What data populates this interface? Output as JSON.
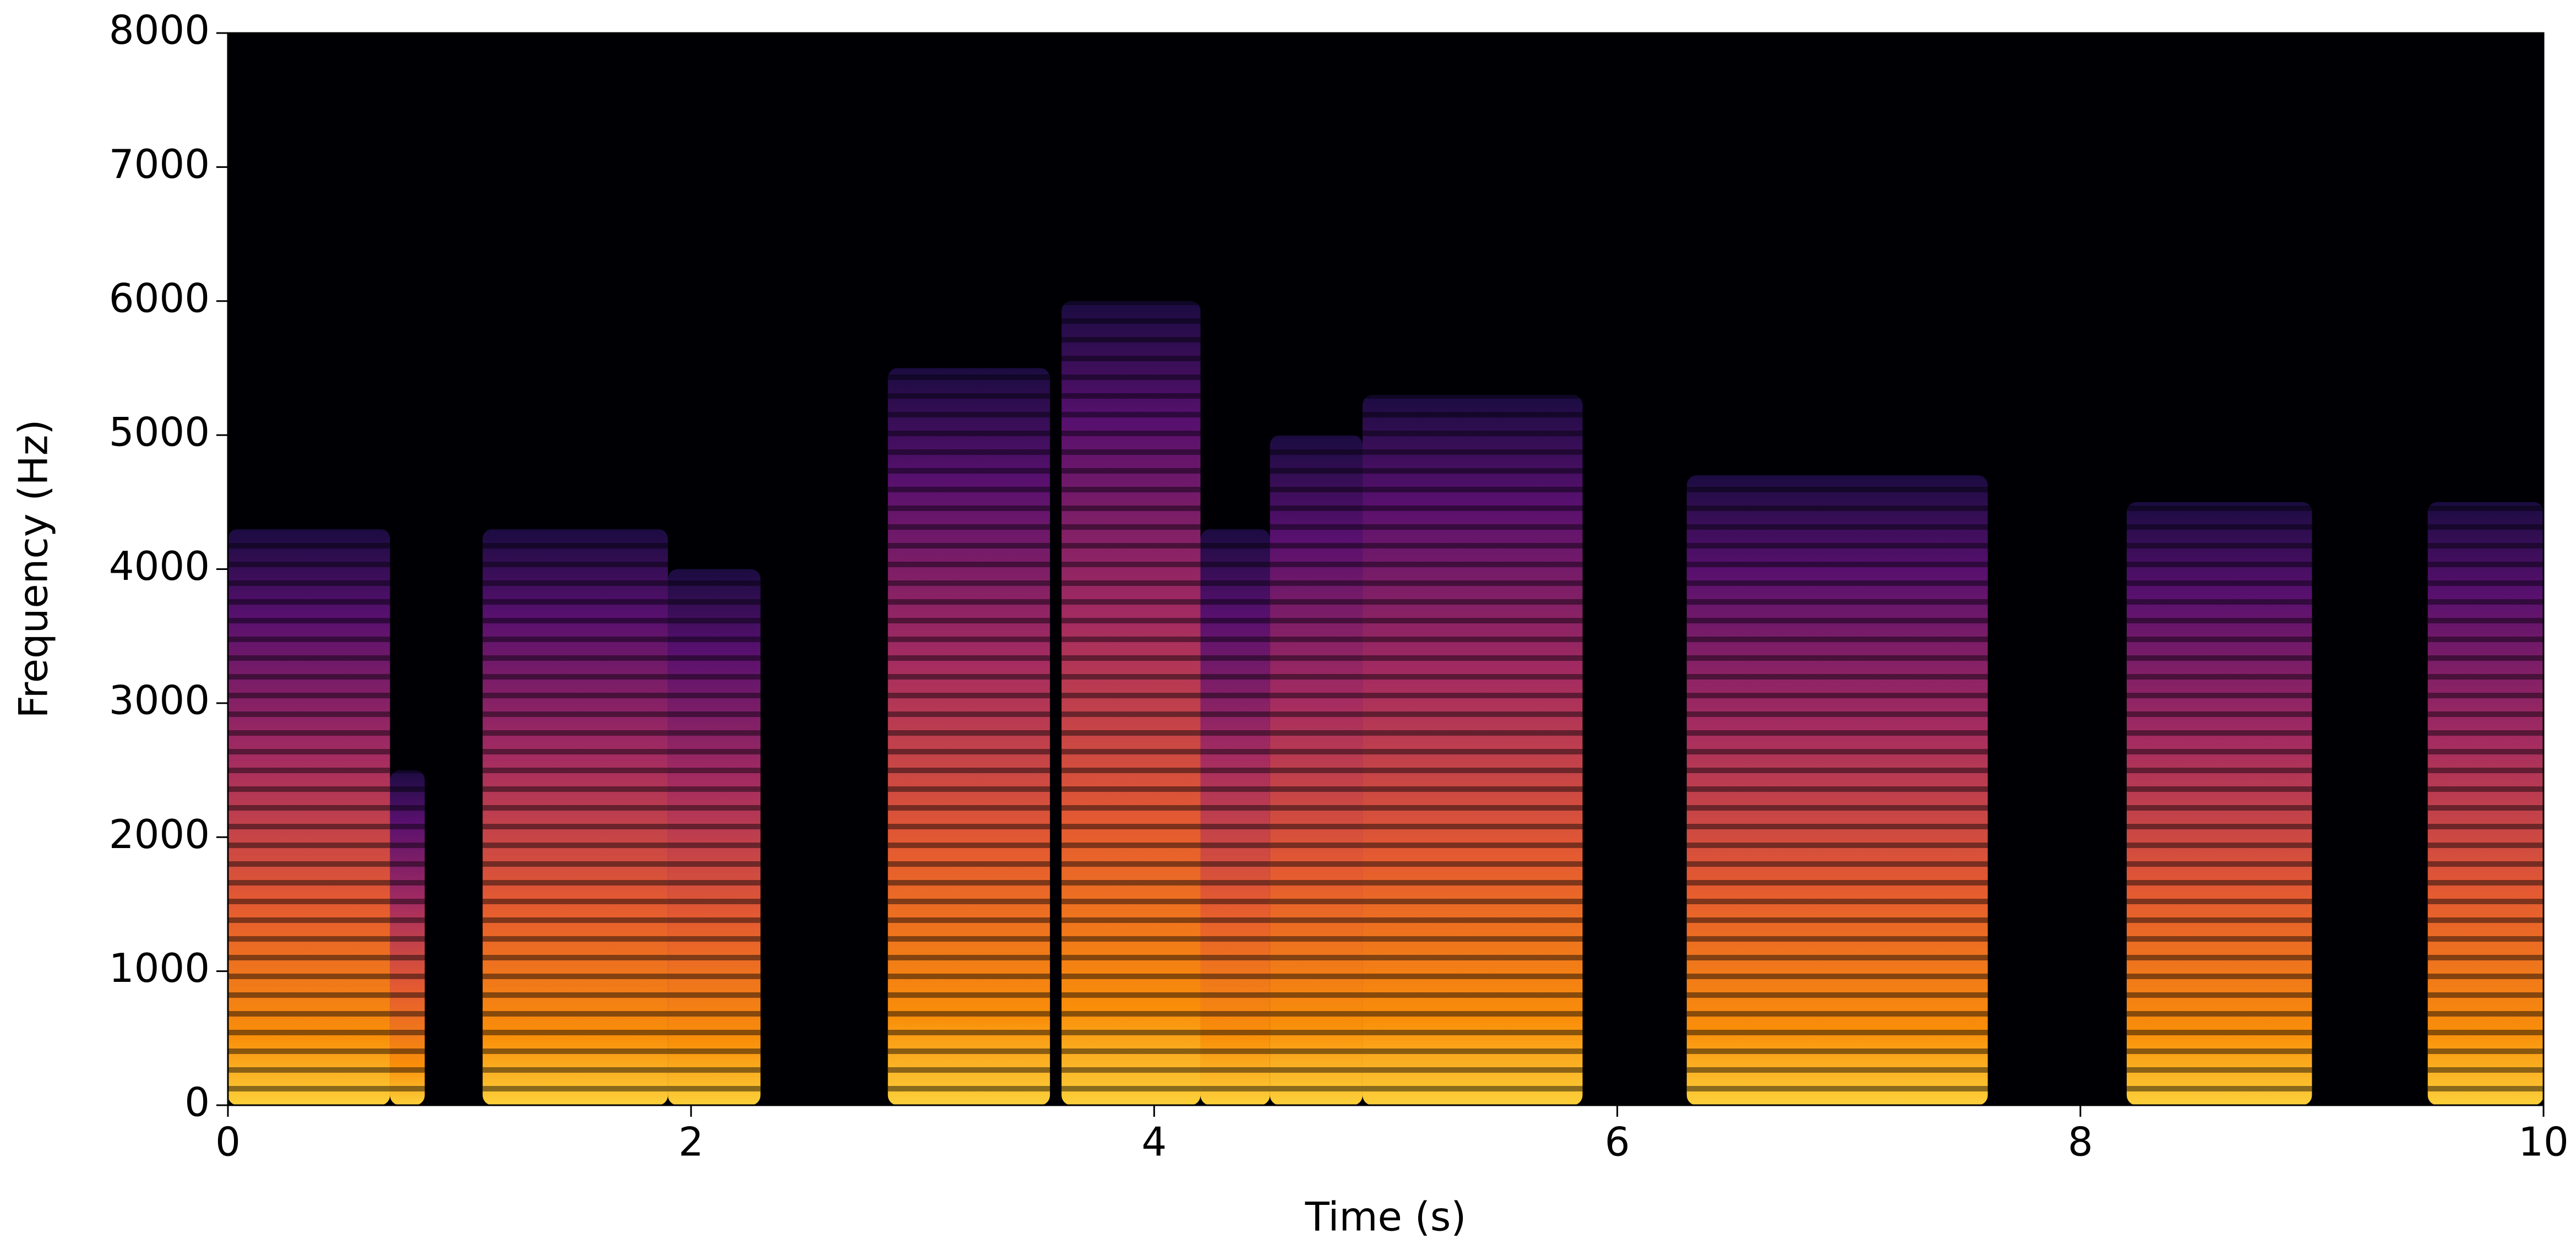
{
  "chart_data": {
    "type": "spectrogram",
    "x_label": "Time (s)",
    "y_label": "Frequency (Hz)",
    "xlim": [
      0,
      10
    ],
    "xticks": [
      0,
      2,
      4,
      6,
      8,
      10
    ],
    "ylim": [
      0,
      8000
    ],
    "yticks": [
      0,
      1000,
      2000,
      3000,
      4000,
      5000,
      6000,
      7000,
      8000
    ],
    "segments": [
      {
        "start": 0.0,
        "end": 0.7,
        "top": 4300
      },
      {
        "start": 0.7,
        "end": 0.85,
        "top": 2500
      },
      {
        "start": 1.1,
        "end": 1.9,
        "top": 4300
      },
      {
        "start": 1.9,
        "end": 2.3,
        "top": 4000
      },
      {
        "start": 2.85,
        "end": 3.55,
        "top": 5500
      },
      {
        "start": 3.6,
        "end": 4.2,
        "top": 6000
      },
      {
        "start": 4.2,
        "end": 4.5,
        "top": 4300
      },
      {
        "start": 4.5,
        "end": 4.9,
        "top": 5000
      },
      {
        "start": 4.9,
        "end": 5.85,
        "top": 5300
      },
      {
        "start": 6.3,
        "end": 7.6,
        "top": 4700
      },
      {
        "start": 8.2,
        "end": 9.0,
        "top": 4500
      },
      {
        "start": 9.5,
        "end": 10.0,
        "top": 4500
      }
    ]
  }
}
